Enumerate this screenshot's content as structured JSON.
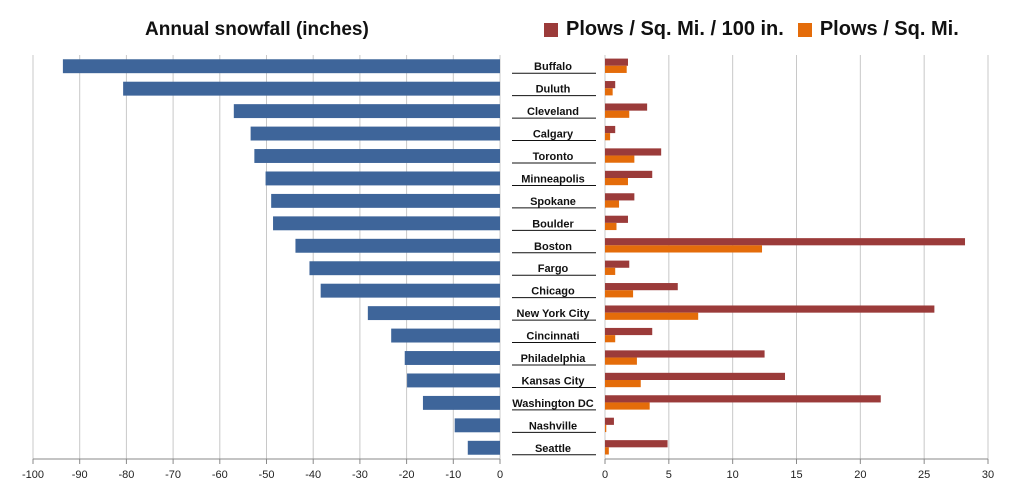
{
  "chart_data": [
    {
      "type": "bar",
      "orientation": "horizontal",
      "title": "Annual snowfall (inches)",
      "categories": [
        "Buffalo",
        "Duluth",
        "Cleveland",
        "Calgary",
        "Toronto",
        "Minneapolis",
        "Spokane",
        "Boulder",
        "Boston",
        "Fargo",
        "Chicago",
        "New York City",
        "Cincinnati",
        "Philadelphia",
        "Kansas City",
        "Washington DC",
        "Nashville",
        "Seattle"
      ],
      "values": [
        -93.6,
        -80.7,
        -57.0,
        -53.4,
        -52.6,
        -50.2,
        -49.0,
        -48.6,
        -43.8,
        -40.8,
        -38.4,
        -28.3,
        -23.3,
        -20.4,
        -19.9,
        -16.5,
        -9.7,
        -6.9
      ],
      "xlim": [
        -100,
        0
      ],
      "xticks": [
        "-100",
        "-90",
        "-80",
        "-70",
        "-60",
        "-50",
        "-40",
        "-30",
        "-20",
        "-10",
        "0"
      ],
      "color": "#3e659a",
      "grid": true
    },
    {
      "type": "bar",
      "orientation": "horizontal",
      "categories": [
        "Buffalo",
        "Duluth",
        "Cleveland",
        "Calgary",
        "Toronto",
        "Minneapolis",
        "Spokane",
        "Boulder",
        "Boston",
        "Fargo",
        "Chicago",
        "New York City",
        "Cincinnati",
        "Philadelphia",
        "Kansas City",
        "Washington DC",
        "Nashville",
        "Seattle"
      ],
      "series": [
        {
          "name": "Plows / Sq. Mi. / 100 in.",
          "color": "#9b3b3a",
          "values": [
            1.8,
            0.8,
            3.3,
            0.8,
            4.4,
            3.7,
            2.3,
            1.8,
            28.2,
            1.9,
            5.7,
            25.8,
            3.7,
            12.5,
            14.1,
            21.6,
            0.7,
            4.9
          ]
        },
        {
          "name": "Plows / Sq. Mi.",
          "color": "#e46c0a",
          "values": [
            1.7,
            0.6,
            1.9,
            0.4,
            2.3,
            1.8,
            1.1,
            0.9,
            12.3,
            0.8,
            2.2,
            7.3,
            0.8,
            2.5,
            2.8,
            3.5,
            0.1,
            0.3
          ]
        }
      ],
      "xlim": [
        0,
        30
      ],
      "xticks": [
        "0",
        "5",
        "10",
        "15",
        "20",
        "25",
        "30"
      ],
      "legend": "top",
      "grid": true
    }
  ]
}
